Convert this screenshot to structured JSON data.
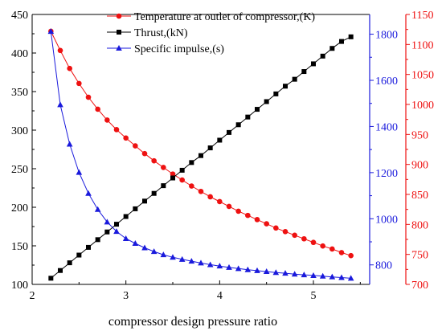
{
  "chart_data": {
    "type": "line",
    "xlabel": "compressor design pressure ratio",
    "grid": false,
    "legend_position": "top",
    "x": [
      2.2,
      2.3,
      2.4,
      2.5,
      2.6,
      2.7,
      2.8,
      2.9,
      3.0,
      3.1,
      3.2,
      3.3,
      3.4,
      3.5,
      3.6,
      3.7,
      3.8,
      3.9,
      4.0,
      4.1,
      4.2,
      4.3,
      4.4,
      4.5,
      4.6,
      4.7,
      4.8,
      4.9,
      5.0,
      5.1,
      5.2,
      5.3,
      5.4
    ],
    "axes": {
      "x": {
        "range": [
          2,
          5.6
        ],
        "ticks": [
          2,
          3,
          4,
          5
        ],
        "tick_labels": [
          "2",
          "3",
          "4",
          "5"
        ]
      },
      "y_left": {
        "range": [
          100,
          450
        ],
        "ticks": [
          100,
          150,
          200,
          250,
          300,
          350,
          400,
          450
        ],
        "tick_labels": [
          "100",
          "150",
          "200",
          "250",
          "300",
          "350",
          "400",
          "450"
        ],
        "color": "#000000"
      },
      "y_right_blue": {
        "range": [
          715.5,
          1885.5
        ],
        "ticks": [
          800,
          1000,
          1200,
          1400,
          1600,
          1800
        ],
        "tick_labels": [
          "800",
          "1000",
          "1200",
          "1400",
          "1600",
          "1800"
        ],
        "color": "#1a1adc"
      },
      "y_right_red": {
        "range": [
          700,
          1150
        ],
        "ticks": [
          700,
          750,
          800,
          850,
          900,
          950,
          1000,
          1050,
          1100,
          1150
        ],
        "tick_labels": [
          "700",
          "750",
          "800",
          "850",
          "900",
          "950",
          "1000",
          "1050",
          "1100",
          "1150"
        ],
        "color": "#ee1111"
      }
    },
    "series": [
      {
        "name": "Temperature at outlet of compressor,(K)",
        "axis": "y_right_red",
        "color": "#ee1111",
        "marker": "circle",
        "values": [
          1122,
          1090,
          1060,
          1035,
          1012,
          992,
          974,
          958,
          944,
          931,
          918,
          906,
          895,
          884,
          874,
          864,
          855,
          846,
          838,
          830,
          822,
          815,
          808,
          801,
          794,
          788,
          782,
          776,
          770,
          764,
          759,
          753,
          748
        ]
      },
      {
        "name": "Thrust,(kN)",
        "axis": "y_left",
        "color": "#000000",
        "marker": "square",
        "values": [
          108,
          118,
          128,
          138,
          148,
          158,
          168,
          178,
          188,
          198,
          208,
          218,
          228,
          238,
          248,
          258,
          267,
          277,
          287,
          297,
          307,
          317,
          327,
          337,
          347,
          357,
          366,
          376,
          386,
          396,
          406,
          415,
          421
        ]
      },
      {
        "name": "Specific impulse,(s)",
        "axis": "y_right_blue",
        "color": "#1a1adc",
        "marker": "triangle",
        "values": [
          1812,
          1494,
          1323,
          1201,
          1110,
          1040,
          986,
          945,
          914,
          893,
          874,
          858,
          844,
          833,
          824,
          816,
          808,
          801,
          795,
          789,
          784,
          779,
          775,
          771,
          767,
          764,
          760,
          757,
          754,
          751,
          748,
          745,
          742
        ]
      }
    ]
  }
}
